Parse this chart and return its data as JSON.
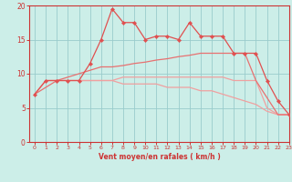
{
  "x": [
    0,
    1,
    2,
    3,
    4,
    5,
    6,
    7,
    8,
    9,
    10,
    11,
    12,
    13,
    14,
    15,
    16,
    17,
    18,
    19,
    20,
    21,
    22,
    23
  ],
  "line_jagged": [
    7,
    9,
    9,
    9,
    9,
    11.5,
    15,
    19.5,
    17.5,
    17.5,
    15,
    15.5,
    15.5,
    15,
    17.5,
    15.5,
    15.5,
    15.5,
    13,
    13,
    13,
    9,
    6,
    4
  ],
  "line_smooth_up": [
    7,
    8,
    9,
    9.5,
    10,
    10.5,
    11,
    11,
    11.2,
    11.5,
    11.7,
    12,
    12.2,
    12.5,
    12.7,
    13,
    13,
    13,
    13,
    13,
    9,
    6.5,
    4,
    4
  ],
  "line_flat": [
    7,
    9,
    9,
    9,
    9,
    9,
    9,
    9,
    9.5,
    9.5,
    9.5,
    9.5,
    9.5,
    9.5,
    9.5,
    9.5,
    9.5,
    9.5,
    9,
    9,
    9,
    5,
    4,
    4
  ],
  "line_decline": [
    7,
    9,
    9,
    9,
    9,
    9,
    9,
    9,
    8.5,
    8.5,
    8.5,
    8.5,
    8,
    8,
    8,
    7.5,
    7.5,
    7,
    6.5,
    6,
    5.5,
    4.5,
    4,
    4
  ],
  "bg_color": "#cceee8",
  "line_color_dark": "#e05050",
  "line_color_mid": "#e87070",
  "line_color_light": "#f0a0a0",
  "grid_color": "#99cccc",
  "axis_color": "#cc3333",
  "xlabel": "Vent moyen/en rafales ( km/h )",
  "ylim": [
    0,
    20
  ],
  "xlim": [
    -0.5,
    23
  ]
}
